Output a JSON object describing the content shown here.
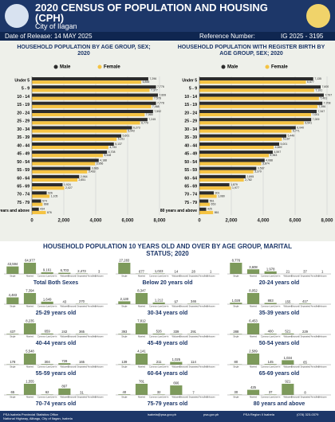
{
  "header": {
    "title": "2020 CENSUS OF POPULATION AND HOUSING (CPH)",
    "subtitle": "City of Ilagan",
    "release": "Date of Release: 14 MAY 2025",
    "reference_label": "Reference Number:",
    "reference": "IG 2025 - 3195"
  },
  "chart_data": [
    {
      "type": "grouped-hbar",
      "title": "HOUSEHOLD POPULATION BY AGE GROUP, SEX; 2020",
      "categories": [
        "Under 5",
        "5 - 9",
        "10 - 14",
        "15 - 19",
        "20 - 24",
        "25 - 29",
        "30 - 34",
        "35 - 39",
        "40 - 44",
        "45 - 49",
        "50 - 54",
        "55 - 59",
        "60 - 64",
        "65 - 69",
        "70 - 74",
        "75 - 79",
        "80 years and above"
      ],
      "series": [
        {
          "name": "Male",
          "color": "#2b2b2b",
          "values": [
            7296,
            7776,
            7899,
            7778,
            7592,
            7245,
            6273,
            5601,
            5137,
            4708,
            4188,
            3666,
            2964,
            1924,
            926,
            574,
            434
          ],
          "value_labels": [
            "7,296",
            "7,776",
            "7,899",
            "7,778",
            "7,592",
            "7,245",
            "6,273",
            "5,601",
            "5,137",
            "4,708",
            "4,188",
            "3,666",
            "2,964",
            "1,924",
            "926",
            "574",
            "434"
          ]
        },
        {
          "name": "Female",
          "color": "#f5c342",
          "values": [
            6855,
            7377,
            7578,
            7468,
            7065,
            6779,
            5942,
            5311,
            4793,
            4448,
            3956,
            3463,
            2851,
            2027,
            1105,
            668,
            876
          ],
          "value_labels": [
            "6,855",
            "7,377",
            "7,578",
            "7,468",
            "7,065",
            "6,779",
            "5,942",
            "5,311",
            "4,793",
            "4,448",
            "3,956",
            "3,463",
            "2,851",
            "2,027",
            "1,105",
            "668",
            "876"
          ]
        }
      ],
      "xlim": [
        0,
        8000
      ],
      "xticks": [
        0,
        {
          "value": 2000,
          "label": "2,000"
        },
        {
          "value": 4000,
          "label": "4,000"
        },
        {
          "value": 6000,
          "label": "6,000"
        },
        {
          "value": 8000,
          "label": "8,000"
        }
      ],
      "grid": true
    },
    {
      "type": "grouped-hbar",
      "title": "HOUSEHOLD POPULATION WITH REGISTER BIRTH BY AGE GROUP, SEX; 2020",
      "categories": [
        "Under 5",
        "5 - 9",
        "10 - 14",
        "15 - 19",
        "20 - 24",
        "25 - 29",
        "30 - 34",
        "35 - 39",
        "40 - 44",
        "45 - 49",
        "50 - 54",
        "55 - 59",
        "60 - 64",
        "65 - 69",
        "70 - 74",
        "75 - 79",
        "80 years and above"
      ],
      "series": [
        {
          "name": "Male",
          "color": "#2b2b2b",
          "values": [
            7135,
            7600,
            7797,
            7708,
            7347,
            7009,
            6040,
            5449,
            5001,
            4597,
            4088,
            3567,
            2895,
            1879,
            901,
            561,
            425
          ],
          "value_labels": [
            "7,135",
            "7,600",
            "7,797",
            "7,708",
            "7,347",
            "7,009",
            "6,040",
            "5,449",
            "5,001",
            "4,597",
            "4,088",
            "3,567",
            "2,895",
            "1,879",
            "901",
            "561",
            "425"
          ]
        },
        {
          "name": "Female",
          "color": "#f5c342",
          "values": [
            6677,
            7191,
            7491,
            7396,
            7001,
            6541,
            5771,
            5167,
            4659,
            4353,
            3874,
            3379,
            2782,
            1977,
            1080,
            653,
            861
          ],
          "value_labels": [
            "6,677",
            "7,191",
            "7,491",
            "7,396",
            "7,001",
            "6,541",
            "5,771",
            "5,167",
            "4,659",
            "4,353",
            "3,874",
            "3,379",
            "2,782",
            "1,977",
            "1,080",
            "653",
            "861"
          ]
        }
      ],
      "xlim": [
        0,
        8000
      ],
      "xticks": [
        0,
        {
          "value": 2000,
          "label": "2,000"
        },
        {
          "value": 4000,
          "label": "4,000"
        },
        {
          "value": 6000,
          "label": "6,000"
        },
        {
          "value": 8000,
          "label": "8,000"
        }
      ],
      "grid": true
    },
    {
      "type": "small-multiples-bar",
      "title": "HOUSEHOLD POPULATION 10 YEARS OLD AND OVER BY AGE GROUP, MARITAL STATUS; 2020",
      "categories": [
        "Single",
        "Married",
        "Common Law/Live-in",
        "Widowed",
        "Divorced/ Separated/ Annulled",
        "Unknown"
      ],
      "color": "#7d9a5b",
      "panels": [
        {
          "title": "Total Both Sexes",
          "values": [
            43594,
            64977,
            9161,
            6703,
            2473,
            3
          ],
          "value_labels": [
            "43,594",
            "64,977",
            "9,161",
            "6,703",
            "2,473",
            "3"
          ]
        },
        {
          "title": "Below 20 years old",
          "values": [
            27283,
            677,
            1023,
            14,
            28,
            1
          ],
          "value_labels": [
            "27,283",
            "677",
            "1,023",
            "14",
            "28",
            "1"
          ]
        },
        {
          "title": "20-24 years old",
          "values": [
            8776,
            3608,
            1978,
            21,
            37,
            1
          ],
          "value_labels": [
            "8,776",
            "3,608",
            "1,978",
            "21",
            "37",
            "1"
          ]
        },
        {
          "title": "25-29 years old",
          "values": [
            4483,
            7394,
            1649,
            43,
            270,
            null
          ],
          "value_labels": [
            "4,483",
            "7,394",
            "1,649",
            "43",
            "270",
            null
          ]
        },
        {
          "title": "30-34 years old",
          "values": [
            2130,
            8347,
            1212,
            97,
            346,
            null
          ],
          "value_labels": [
            "2,130",
            "8,347",
            "1,212",
            "97",
            "346",
            null
          ]
        },
        {
          "title": "35-39 years old",
          "values": [
            1028,
            8052,
            883,
            155,
            417,
            null
          ],
          "value_labels": [
            "1,028",
            "8,052",
            "883",
            "155",
            "417",
            null
          ]
        },
        {
          "title": "40-44 years old",
          "values": [
            437,
            8235,
            659,
            242,
            365,
            null
          ],
          "value_labels": [
            "437",
            "8,235",
            "659",
            "242",
            "365",
            null
          ]
        },
        {
          "title": "45-49 years old",
          "values": [
            393,
            7812,
            526,
            339,
            291,
            null
          ],
          "value_labels": [
            "393",
            "7,812",
            "526",
            "339",
            "291",
            null
          ]
        },
        {
          "title": "50-54 years old",
          "values": [
            288,
            6453,
            400,
            521,
            229,
            null
          ],
          "value_labels": [
            "288",
            "6,453",
            "400",
            "521",
            "229",
            null
          ]
        },
        {
          "title": "55-59 years old",
          "values": [
            178,
            5548,
            304,
            728,
            165,
            null
          ],
          "value_labels": [
            "178",
            "5,548",
            "304",
            "728",
            "165",
            null
          ]
        },
        {
          "title": "60-64 years old",
          "values": [
            139,
            4141,
            211,
            1025,
            114,
            null
          ],
          "value_labels": [
            "139",
            "4,141",
            "211",
            "1,025",
            "114",
            null
          ]
        },
        {
          "title": "65-69 years old",
          "values": [
            80,
            2589,
            145,
            1034,
            65,
            null
          ],
          "value_labels": [
            "80",
            "2,589",
            "145",
            "1,034",
            "65",
            null
          ]
        },
        {
          "title": "70-74 years old",
          "values": [
            65,
            1555,
            62,
            897,
            31,
            null
          ],
          "value_labels": [
            "65",
            "1,555",
            "62",
            "897",
            "31",
            null
          ]
        },
        {
          "title": "75-79 years old",
          "values": [
            40,
            781,
            32,
            666,
            7,
            null
          ],
          "value_labels": [
            "40",
            "781",
            "32",
            "666",
            "7",
            null
          ]
        },
        {
          "title": "80 years and above",
          "values": [
            30,
            425,
            37,
            921,
            8,
            null
          ],
          "value_labels": [
            "30",
            "425",
            "37",
            "921",
            "8",
            null
          ]
        }
      ]
    }
  ],
  "footer": {
    "office": "PSA Isabela Provincial Statistics Office",
    "address": "National Highway, Alibagu, City of Ilagan, Isabela",
    "email": "isabela@psa.gov.ph",
    "web": "psa.gov.ph",
    "facebook": "PSA Region II Isabela",
    "phone": "(078) 323-0379"
  }
}
